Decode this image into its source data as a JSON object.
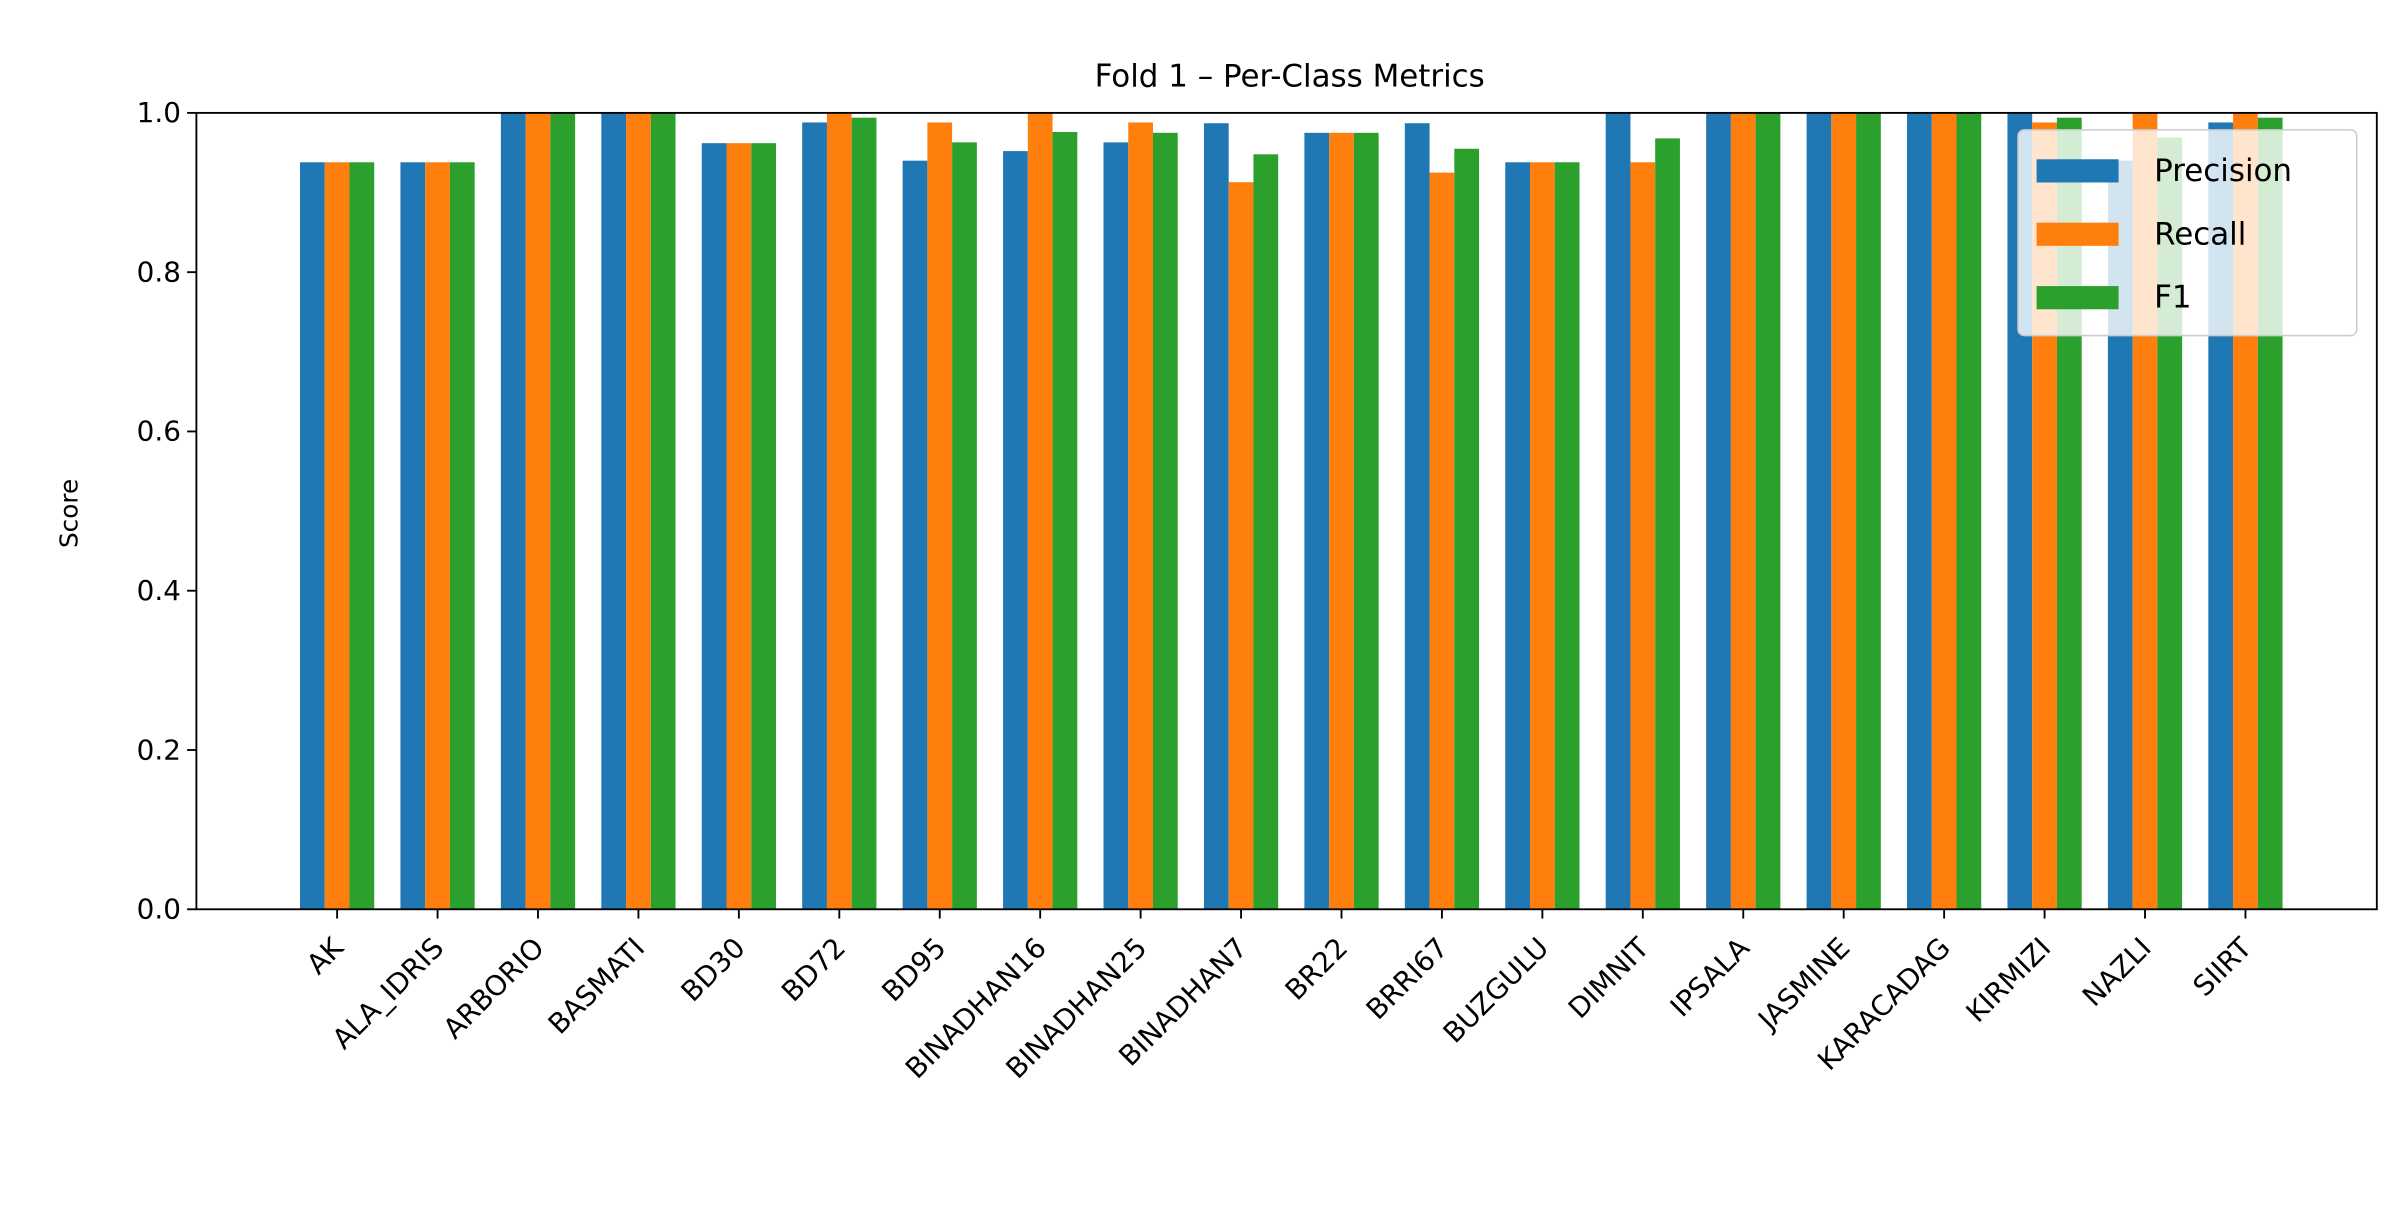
{
  "chart_data": {
    "type": "bar",
    "title": "Fold 1 – Per-Class Metrics",
    "xlabel": "",
    "ylabel": "Score",
    "ylim": [
      0,
      1.0
    ],
    "yticks": [
      "0.0",
      "0.2",
      "0.4",
      "0.6",
      "0.8",
      "1.0"
    ],
    "grid": false,
    "legend_position": "top-right",
    "categories": [
      "AK",
      "ALA_IDRIS",
      "ARBORIO",
      "BASMATI",
      "BD30",
      "BD72",
      "BD95",
      "BINADHAN16",
      "BINADHAN25",
      "BINADHAN7",
      "BR22",
      "BRRI67",
      "BUZGULU",
      "DIMNIT",
      "IPSALA",
      "JASMINE",
      "KARACADAG",
      "KIRMIZI",
      "NAZLI",
      "SIIRT"
    ],
    "series": [
      {
        "name": "Precision",
        "color": "#1f77b4",
        "values": [
          0.938,
          0.938,
          1.0,
          1.0,
          0.962,
          0.988,
          0.94,
          0.952,
          0.963,
          0.987,
          0.975,
          0.987,
          0.938,
          1.0,
          1.0,
          1.0,
          1.0,
          1.0,
          0.94,
          0.988
        ]
      },
      {
        "name": "Recall",
        "color": "#ff7f0e",
        "values": [
          0.938,
          0.938,
          1.0,
          1.0,
          0.962,
          1.0,
          0.988,
          1.0,
          0.988,
          0.913,
          0.975,
          0.925,
          0.938,
          0.938,
          1.0,
          1.0,
          1.0,
          0.988,
          1.0,
          1.0
        ]
      },
      {
        "name": "F1",
        "color": "#2ca02c",
        "values": [
          0.938,
          0.938,
          1.0,
          1.0,
          0.962,
          0.994,
          0.963,
          0.976,
          0.975,
          0.948,
          0.975,
          0.955,
          0.938,
          0.968,
          1.0,
          1.0,
          1.0,
          0.994,
          0.969,
          0.994
        ]
      }
    ]
  }
}
